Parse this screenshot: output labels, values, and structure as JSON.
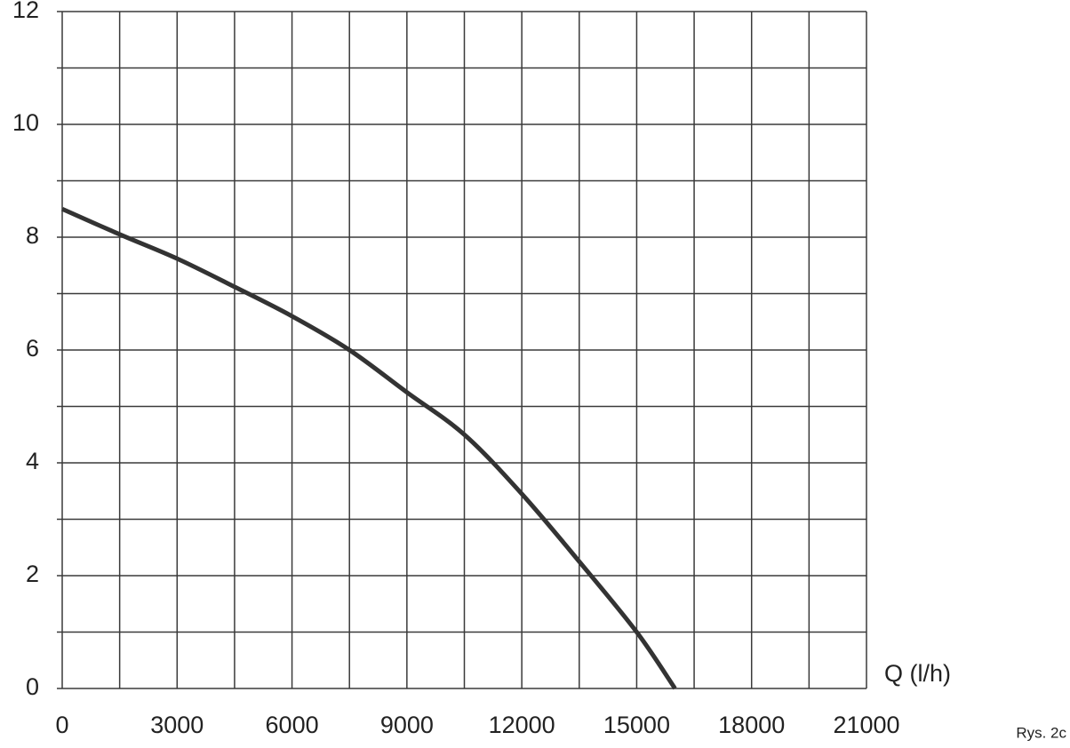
{
  "chart_data": {
    "type": "line",
    "xlabel": "Q (l/h)",
    "caption": "Rys. 2c",
    "x": [
      0,
      1500,
      3000,
      4500,
      6000,
      7500,
      9000,
      10500,
      12000,
      13500,
      15000,
      16000
    ],
    "values": [
      8.5,
      8.05,
      7.62,
      7.12,
      6.6,
      6.0,
      5.25,
      4.5,
      3.45,
      2.25,
      1.0,
      0
    ],
    "color": "#333333",
    "xlim": [
      0,
      21000
    ],
    "ylim": [
      0,
      12
    ],
    "xticks": [
      0,
      3000,
      6000,
      9000,
      12000,
      15000,
      18000,
      21000
    ],
    "yticks": [
      0,
      2,
      4,
      6,
      8,
      10,
      12
    ],
    "xgrid_minor": [
      1500,
      4500,
      7500,
      10500,
      13500,
      16500,
      19500
    ],
    "ygrid_minor": [
      1,
      3,
      5,
      7,
      9,
      11
    ],
    "grid": true
  }
}
